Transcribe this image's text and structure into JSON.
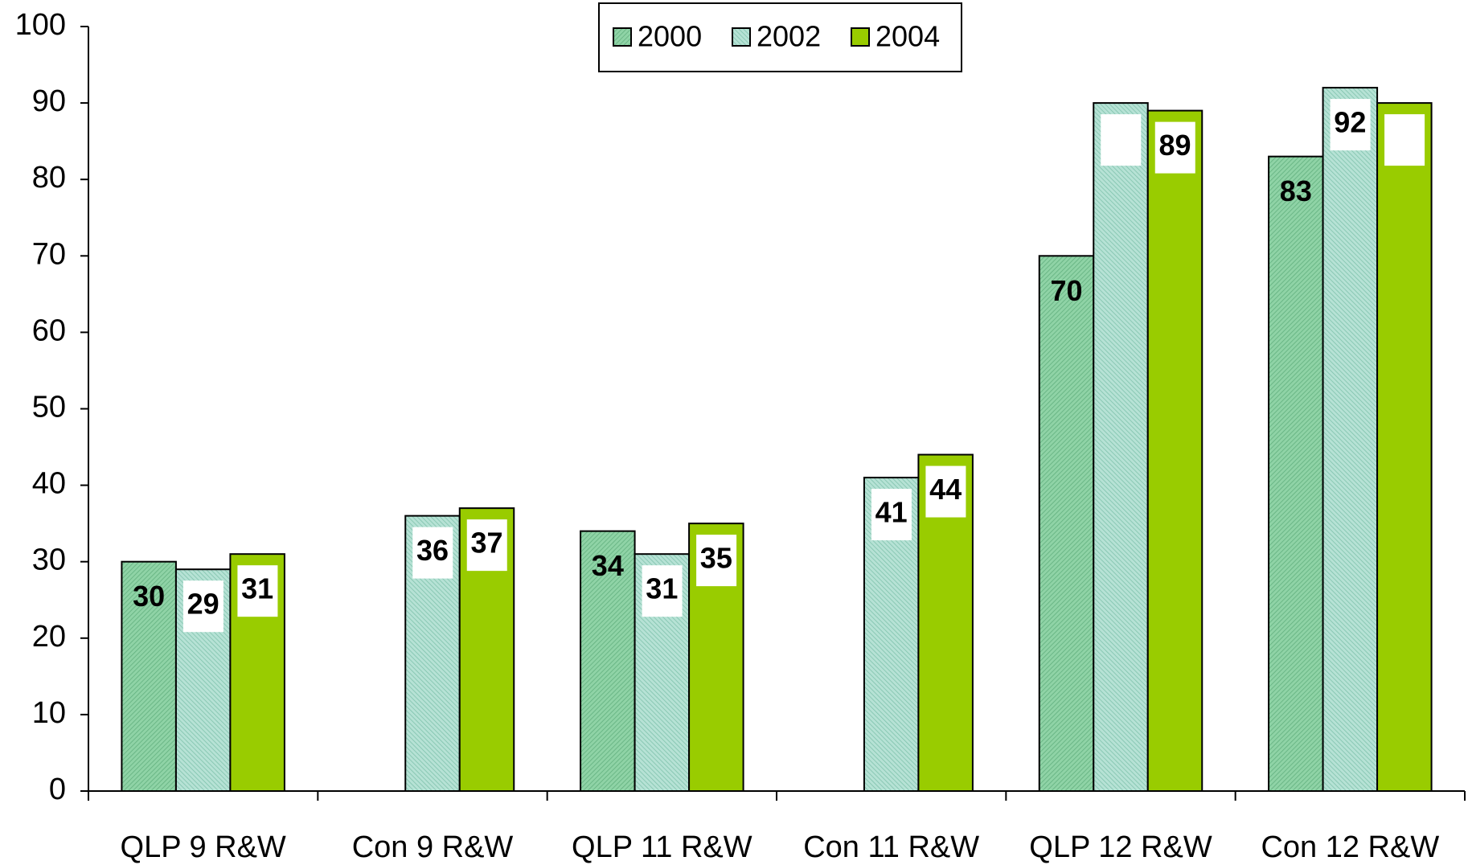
{
  "chart_data": {
    "type": "bar",
    "categories": [
      "QLP 9 R&W",
      "Con 9 R&W",
      "QLP 11 R&W",
      "Con 11 R&W",
      "QLP 12 R&W",
      "Con 12 R&W"
    ],
    "series": [
      {
        "name": "2000",
        "color": "#7fc99a",
        "values": [
          30,
          null,
          34,
          null,
          70,
          83
        ],
        "value_labels": [
          "30",
          null,
          "34",
          null,
          "70",
          "83"
        ]
      },
      {
        "name": "2002",
        "color": "#9fd6c6",
        "values": [
          29,
          36,
          31,
          41,
          90,
          92
        ],
        "value_labels": [
          "29",
          "36",
          "31",
          "41",
          null,
          "92"
        ]
      },
      {
        "name": "2004",
        "color": "#99cc00",
        "values": [
          31,
          37,
          35,
          44,
          89,
          90
        ],
        "value_labels": [
          "31",
          "37",
          "35",
          "44",
          "89",
          null
        ]
      }
    ],
    "ylim": [
      0,
      100
    ],
    "yticks": [
      0,
      10,
      20,
      30,
      40,
      50,
      60,
      70,
      80,
      90,
      100
    ],
    "grid": false,
    "legend": "top"
  }
}
